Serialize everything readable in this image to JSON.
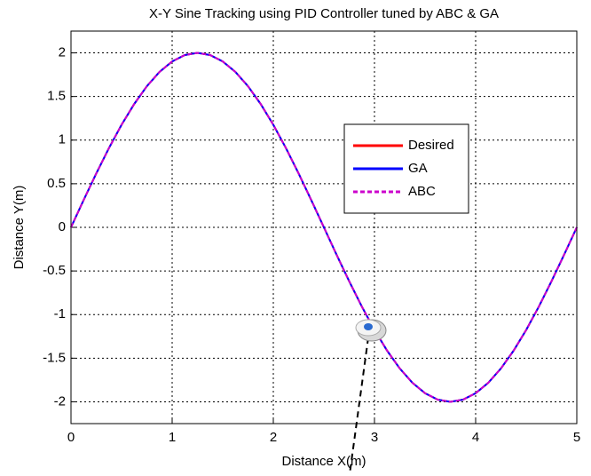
{
  "chart_data": {
    "type": "line",
    "title": "X-Y Sine Tracking using PID Controller tuned by ABC & GA",
    "xlabel": "Distance X(m)",
    "ylabel": "Distance Y(m)",
    "x": [
      0,
      0.125,
      0.25,
      0.375,
      0.5,
      0.625,
      0.75,
      0.875,
      1,
      1.125,
      1.25,
      1.375,
      1.5,
      1.625,
      1.75,
      1.875,
      2,
      2.125,
      2.25,
      2.375,
      2.5,
      2.625,
      2.75,
      2.875,
      3,
      3.125,
      3.25,
      3.375,
      3.5,
      3.625,
      3.75,
      3.875,
      4,
      4.125,
      4.25,
      4.375,
      4.5,
      4.625,
      4.75,
      4.875,
      5
    ],
    "series": [
      {
        "name": "Desired",
        "color": "#ff0000",
        "dashed": false,
        "values": [
          0,
          0.313,
          0.618,
          0.908,
          1.176,
          1.414,
          1.618,
          1.782,
          1.902,
          1.975,
          2,
          1.975,
          1.902,
          1.782,
          1.618,
          1.414,
          1.176,
          0.908,
          0.618,
          0.313,
          0,
          -0.313,
          -0.618,
          -0.908,
          -1.176,
          -1.414,
          -1.618,
          -1.782,
          -1.902,
          -1.975,
          -2,
          -1.975,
          -1.902,
          -1.782,
          -1.618,
          -1.414,
          -1.176,
          -0.908,
          -0.618,
          -0.313,
          0
        ]
      },
      {
        "name": "GA",
        "color": "#0000ff",
        "dashed": false,
        "values": [
          0,
          0.313,
          0.618,
          0.908,
          1.176,
          1.414,
          1.618,
          1.782,
          1.902,
          1.975,
          2,
          1.975,
          1.902,
          1.782,
          1.618,
          1.414,
          1.176,
          0.908,
          0.618,
          0.313,
          0,
          -0.313,
          -0.618,
          -0.908,
          -1.176,
          -1.414,
          -1.618,
          -1.782,
          -1.902,
          -1.975,
          -2,
          -1.975,
          -1.902,
          -1.782,
          -1.618,
          -1.414,
          -1.176,
          -0.908,
          -0.618,
          -0.313,
          0
        ]
      },
      {
        "name": "ABC",
        "color": "#cc00cc",
        "dashed": true,
        "values": [
          0,
          0.313,
          0.618,
          0.908,
          1.176,
          1.414,
          1.618,
          1.782,
          1.902,
          1.975,
          2,
          1.975,
          1.902,
          1.782,
          1.618,
          1.414,
          1.176,
          0.908,
          0.618,
          0.313,
          0,
          -0.313,
          -0.618,
          -0.908,
          -1.176,
          -1.414,
          -1.618,
          -1.782,
          -1.902,
          -1.975,
          -2,
          -1.975,
          -1.902,
          -1.782,
          -1.618,
          -1.414,
          -1.176,
          -0.908,
          -0.618,
          -0.313,
          0
        ]
      }
    ],
    "xlim": [
      0,
      5
    ],
    "xticks": [
      0,
      1,
      2,
      3,
      4,
      5
    ],
    "ylim": [
      -2.25,
      2.25
    ],
    "yticks": [
      -2,
      -1.5,
      -1,
      -0.5,
      0,
      0.5,
      1,
      1.5,
      2
    ],
    "grid": true
  }
}
